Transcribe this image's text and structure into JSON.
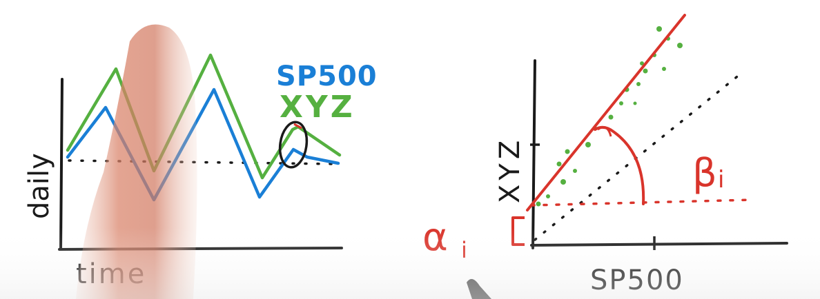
{
  "left_panel": {
    "y_label": "daily",
    "x_label": "time",
    "legend_blue": "SP500",
    "legend_green": "XYZ"
  },
  "right_panel": {
    "y_label": "XYZ",
    "x_label": "SP500",
    "alpha_symbol": "α",
    "alpha_subscript": "i",
    "beta_symbol": "β",
    "beta_subscript": "i"
  },
  "colors": {
    "ink": "#1a1a1a",
    "sp500": "#1a7fd6",
    "xyz": "#55b040",
    "annotation": "#d9342b",
    "finger": "#d88a72"
  }
}
